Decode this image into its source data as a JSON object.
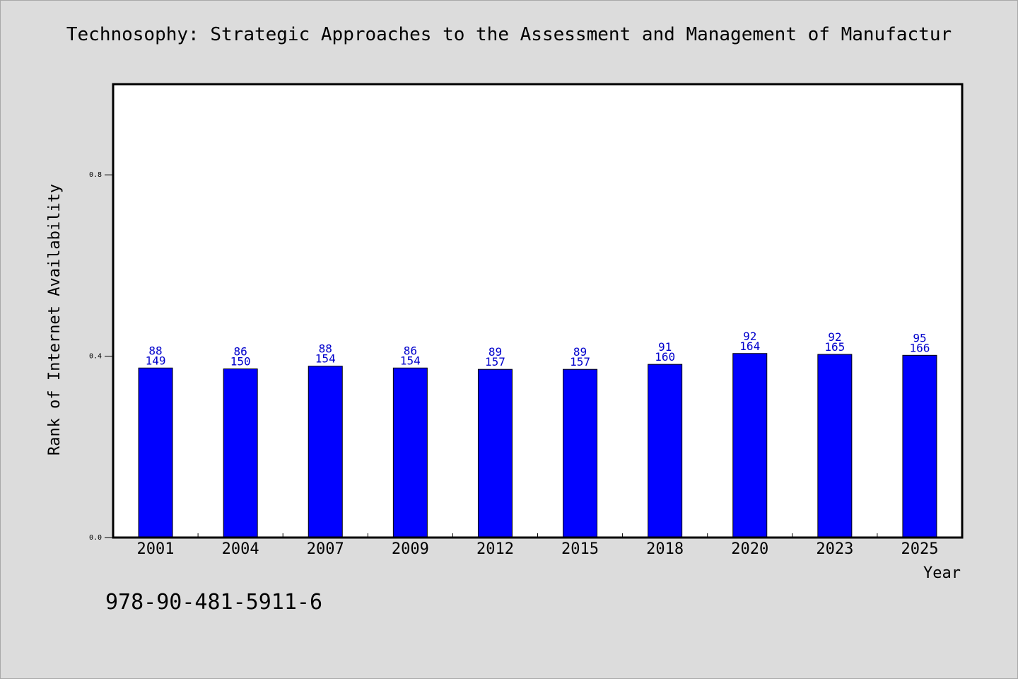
{
  "chart_data": {
    "type": "bar",
    "title": "Technosophy: Strategic Approaches to the Assessment and Management of Manufactur",
    "xlabel": "Year",
    "ylabel": "Rank of Internet Availability",
    "categories": [
      "2001",
      "2004",
      "2007",
      "2009",
      "2012",
      "2015",
      "2018",
      "2020",
      "2023",
      "2025"
    ],
    "values": [
      0.374,
      0.372,
      0.378,
      0.374,
      0.371,
      0.371,
      0.382,
      0.406,
      0.404,
      0.402
    ],
    "label_top": [
      "88",
      "86",
      "88",
      "86",
      "89",
      "89",
      "91",
      "92",
      "92",
      "95"
    ],
    "label_bottom": [
      "149",
      "150",
      "154",
      "154",
      "157",
      "157",
      "160",
      "164",
      "165",
      "166"
    ],
    "ylim": [
      0,
      1.0
    ],
    "yticks": [
      0.0,
      0.4,
      0.8
    ],
    "ytick_labels": [
      "0.0",
      "0.4",
      "0.8"
    ],
    "grid": false,
    "bar_color": "#0000ff",
    "label_color": "#0000cc"
  },
  "footer": {
    "isbn": "978-90-481-5911-6"
  }
}
